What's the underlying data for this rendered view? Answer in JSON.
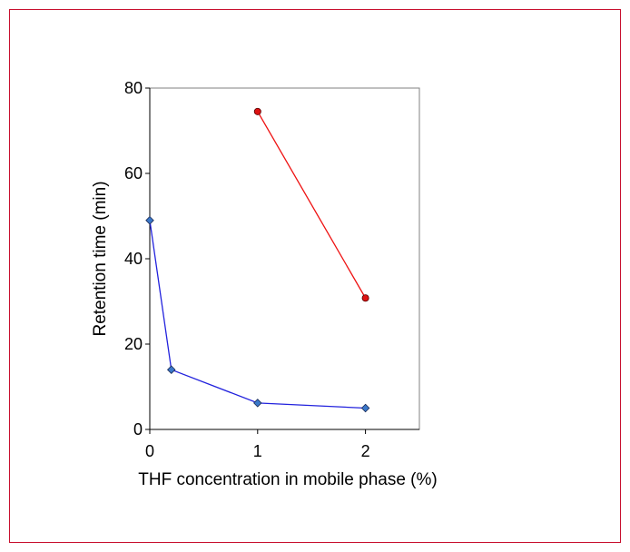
{
  "chart_data": {
    "type": "line",
    "title": "",
    "xlabel": "THF concentration in mobile phase (%)",
    "ylabel": "Retention time (min)",
    "xlim": [
      0,
      2.5
    ],
    "ylim": [
      0,
      80
    ],
    "xticks": [
      0,
      1,
      2
    ],
    "yticks": [
      0,
      20,
      40,
      60,
      80
    ],
    "grid": false,
    "legend": "none",
    "series": [
      {
        "color": "#2222dd",
        "marker": "diamond",
        "marker_color": "#3a78c9",
        "x": [
          0,
          0.2,
          1,
          2
        ],
        "y": [
          49,
          14,
          6.2,
          5
        ]
      },
      {
        "color": "#ee1111",
        "marker": "circle",
        "marker_color": "#dd1111",
        "x": [
          1,
          2
        ],
        "y": [
          74.5,
          30.8
        ]
      }
    ]
  },
  "colors": {
    "frame_border": "#c8102e",
    "plot_border": "#808080"
  }
}
